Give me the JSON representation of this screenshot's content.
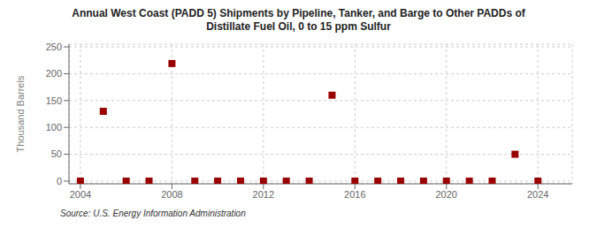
{
  "chart_data": {
    "type": "scatter",
    "title": "Annual West Coast (PADD 5) Shipments by Pipeline, Tanker, and Barge to Other PADDs of\nDistillate Fuel Oil, 0 to 15 ppm Sulfur",
    "y_label": "Thousand Barrels",
    "annotations": [
      "Source: U.S. Energy Information Administration"
    ],
    "x": [
      2004,
      2005,
      2006,
      2007,
      2008,
      2009,
      2010,
      2011,
      2012,
      2013,
      2014,
      2015,
      2016,
      2017,
      2018,
      2019,
      2020,
      2021,
      2022,
      2023,
      2024
    ],
    "values": [
      0,
      130,
      0,
      0,
      219,
      0,
      0,
      0,
      0,
      0,
      0,
      160,
      0,
      0,
      0,
      0,
      0,
      0,
      0,
      50,
      0
    ],
    "color": "#990000",
    "marker": "square",
    "xlim": [
      2003.5,
      2025.5
    ],
    "ylim": [
      -5,
      255
    ],
    "xticks": [
      2004,
      2008,
      2012,
      2016,
      2020,
      2024
    ],
    "yticks": [
      0,
      50,
      100,
      150,
      200,
      250
    ],
    "grid": true
  }
}
